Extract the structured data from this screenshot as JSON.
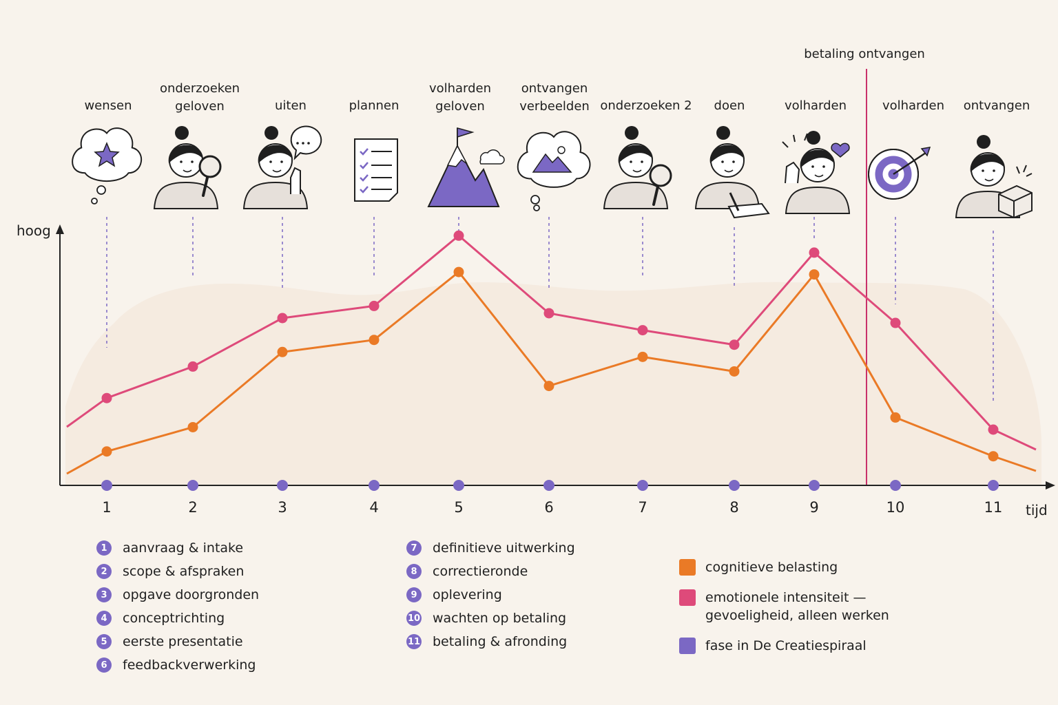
{
  "chart_data": {
    "type": "line",
    "x": [
      1,
      2,
      3,
      4,
      5,
      6,
      7,
      8,
      9,
      10,
      11
    ],
    "xlabel": "tijd",
    "ylabel": "hoog",
    "phase_labels": [
      "wensen",
      "onderzoeken\ngeloven",
      "uiten",
      "plannen",
      "volharden\ngeloven",
      "ontvangen\nverbeelden",
      "onderzoeken 2",
      "doen",
      "volharden",
      "volharden",
      "ontvangen"
    ],
    "annotation": "betaling ontvangen",
    "series": [
      {
        "name": "cognitieve belasting",
        "color": "#ea7a26",
        "values": [
          14,
          24,
          55,
          60,
          88,
          41,
          53,
          47,
          87,
          28,
          12
        ]
      },
      {
        "name": "emotionele intensiteit — gevoeligheid, alleen werken",
        "color": "#de4a7a",
        "values": [
          36,
          49,
          69,
          74,
          103,
          71,
          64,
          58,
          96,
          67,
          23
        ]
      }
    ],
    "phase_series": {
      "name": "fase in De Creatiespiraal",
      "color": "#7b68c4"
    },
    "ylim": [
      0,
      115
    ]
  },
  "legend_steps": [
    {
      "num": "1",
      "label": "aanvraag & intake"
    },
    {
      "num": "2",
      "label": "scope & afspraken"
    },
    {
      "num": "3",
      "label": "opgave doorgronden"
    },
    {
      "num": "4",
      "label": "conceptrichting"
    },
    {
      "num": "5",
      "label": "eerste presentatie"
    },
    {
      "num": "6",
      "label": "feedbackverwerking"
    },
    {
      "num": "7",
      "label": "definitieve uitwerking"
    },
    {
      "num": "8",
      "label": "correctieronde"
    },
    {
      "num": "9",
      "label": "oplevering"
    },
    {
      "num": "10",
      "label": "wachten op betaling"
    },
    {
      "num": "11",
      "label": "betaling & afronding"
    }
  ],
  "legend_key": [
    {
      "label": "cognitieve belasting",
      "color": "#ea7a26"
    },
    {
      "label": "emotionele intensiteit —\ngevoeligheid, alleen werken",
      "color": "#de4a7a"
    },
    {
      "label": "fase in De Creatiespiraal",
      "color": "#7b68c4"
    }
  ],
  "icons": [
    "thought-star-icon",
    "person-magnifier-icon",
    "person-speech-icon",
    "checklist-icon",
    "mountain-flag-icon",
    "thought-mountain-icon",
    "person-magnifier-icon",
    "person-writing-icon",
    "person-heart-icon",
    "target-arrow-icon",
    "person-box-icon"
  ]
}
